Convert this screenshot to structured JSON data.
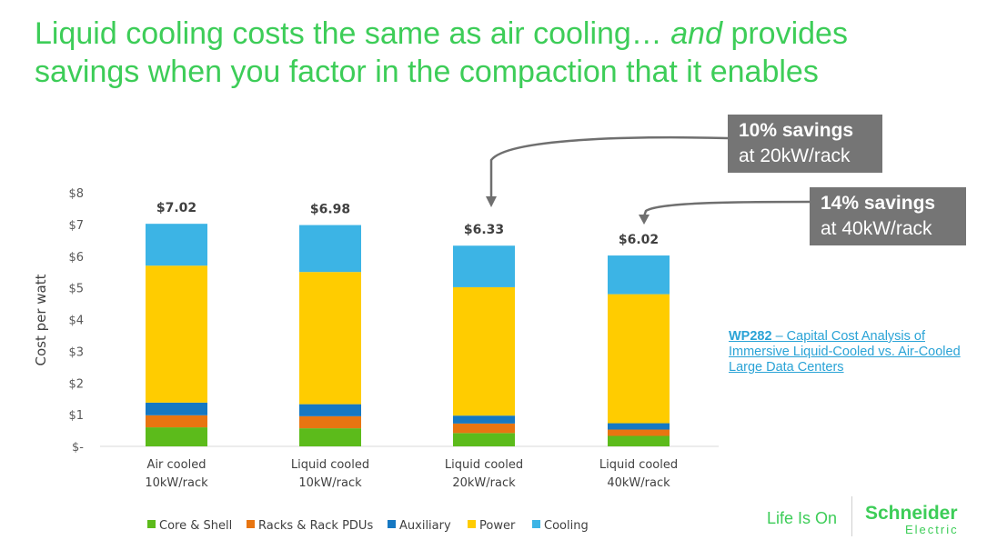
{
  "title": {
    "part1": "Liquid cooling costs the same as air cooling… ",
    "emphasis": "and",
    "part2": " provides savings when you factor in the compaction that it enables"
  },
  "callouts": [
    {
      "bold": "10% savings",
      "text": "at 20kW/rack"
    },
    {
      "bold": "14% savings",
      "text": "at 40kW/rack"
    }
  ],
  "reference": {
    "code": "WP282",
    "text": " – Capital Cost Analysis of Immersive Liquid-Cooled vs. Air-Cooled Large Data Centers"
  },
  "footer": {
    "tagline": "Life Is On",
    "logo_line1": "Schneider",
    "logo_line2": "Electric"
  },
  "colors": {
    "title": "#3dcd58",
    "callout_bg": "#757575",
    "link": "#2aa3d6"
  },
  "chart_data": {
    "type": "bar",
    "stacked": true,
    "ylabel": "Cost per watt",
    "ylim": [
      0,
      8
    ],
    "y_ticks": [
      "$-",
      "$1",
      "$2",
      "$3",
      "$4",
      "$5",
      "$6",
      "$7",
      "$8"
    ],
    "categories": [
      [
        "Air cooled",
        "10kW/rack"
      ],
      [
        "Liquid cooled",
        "10kW/rack"
      ],
      [
        "Liquid cooled",
        "20kW/rack"
      ],
      [
        "Liquid cooled",
        "40kW/rack"
      ]
    ],
    "totals": [
      "$7.02",
      "$6.98",
      "$6.33",
      "$6.02"
    ],
    "total_values": [
      7.02,
      6.98,
      6.33,
      6.02
    ],
    "series": [
      {
        "name": "Core & Shell",
        "color": "#5cbb1b",
        "values": [
          0.6,
          0.57,
          0.42,
          0.33
        ]
      },
      {
        "name": "Racks & Rack PDUs",
        "color": "#e87511",
        "values": [
          0.38,
          0.38,
          0.3,
          0.2
        ]
      },
      {
        "name": "Auxiliary",
        "color": "#1678c2",
        "values": [
          0.4,
          0.38,
          0.25,
          0.2
        ]
      },
      {
        "name": "Power",
        "color": "#ffcc00",
        "values": [
          4.32,
          4.17,
          4.05,
          4.07
        ]
      },
      {
        "name": "Cooling",
        "color": "#3cb4e5",
        "values": [
          1.32,
          1.48,
          1.31,
          1.22
        ]
      }
    ],
    "legend_position": "bottom",
    "grid": false
  }
}
